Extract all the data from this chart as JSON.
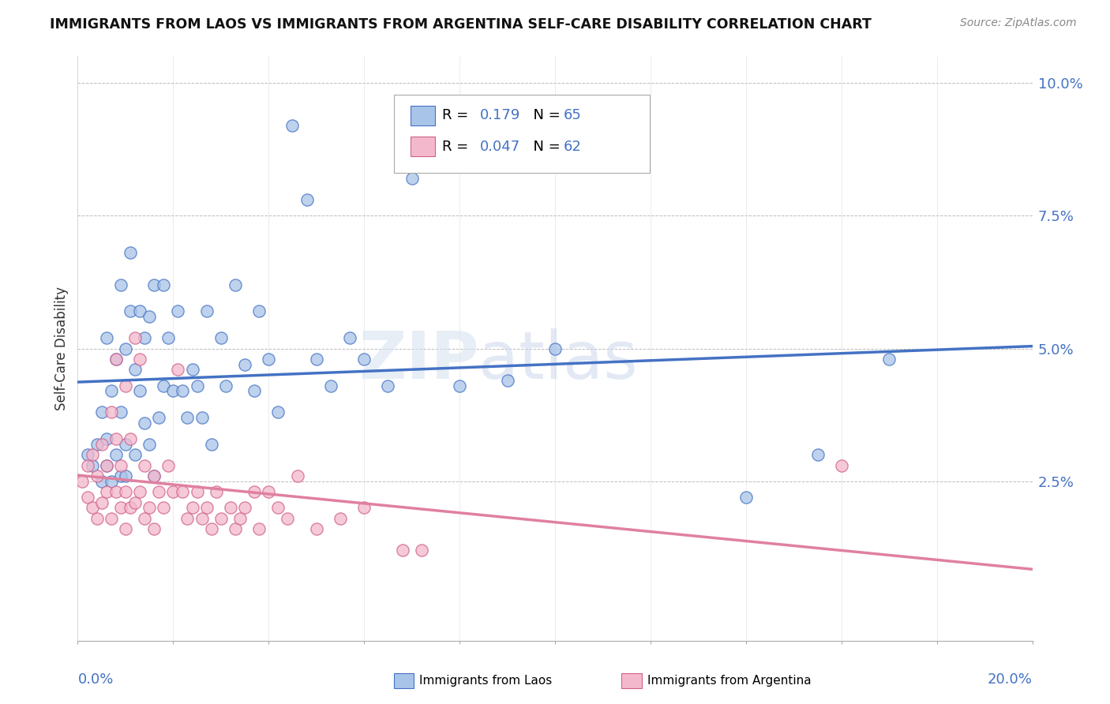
{
  "title": "IMMIGRANTS FROM LAOS VS IMMIGRANTS FROM ARGENTINA SELF-CARE DISABILITY CORRELATION CHART",
  "source": "Source: ZipAtlas.com",
  "ylabel": "Self-Care Disability",
  "xmin": 0.0,
  "xmax": 0.2,
  "ymin": -0.005,
  "ymax": 0.105,
  "yticks": [
    0.025,
    0.05,
    0.075,
    0.1
  ],
  "ytick_labels": [
    "2.5%",
    "5.0%",
    "7.5%",
    "10.0%"
  ],
  "xtick_labels": [
    "0.0%",
    "20.0%"
  ],
  "legend_laos_r": "0.179",
  "legend_laos_n": "65",
  "legend_argentina_r": "0.047",
  "legend_argentina_n": "62",
  "color_laos_fill": "#a8c4e8",
  "color_laos_edge": "#4472c4",
  "color_argentina_fill": "#f4b8cc",
  "color_argentina_edge": "#d0608a",
  "color_laos_line": "#4472c4",
  "color_argentina_line": "#e080a0",
  "laos_x": [
    0.002,
    0.003,
    0.004,
    0.005,
    0.005,
    0.006,
    0.006,
    0.006,
    0.007,
    0.007,
    0.008,
    0.008,
    0.009,
    0.009,
    0.009,
    0.01,
    0.01,
    0.01,
    0.011,
    0.011,
    0.012,
    0.012,
    0.013,
    0.013,
    0.014,
    0.014,
    0.015,
    0.015,
    0.016,
    0.016,
    0.017,
    0.018,
    0.018,
    0.019,
    0.02,
    0.021,
    0.022,
    0.023,
    0.024,
    0.025,
    0.026,
    0.027,
    0.028,
    0.03,
    0.031,
    0.033,
    0.035,
    0.037,
    0.038,
    0.04,
    0.042,
    0.045,
    0.048,
    0.05,
    0.053,
    0.057,
    0.06,
    0.065,
    0.07,
    0.08,
    0.09,
    0.1,
    0.14,
    0.155,
    0.17
  ],
  "laos_y": [
    0.03,
    0.028,
    0.032,
    0.038,
    0.025,
    0.052,
    0.033,
    0.028,
    0.042,
    0.025,
    0.048,
    0.03,
    0.038,
    0.062,
    0.026,
    0.05,
    0.032,
    0.026,
    0.057,
    0.068,
    0.046,
    0.03,
    0.042,
    0.057,
    0.036,
    0.052,
    0.056,
    0.032,
    0.062,
    0.026,
    0.037,
    0.043,
    0.062,
    0.052,
    0.042,
    0.057,
    0.042,
    0.037,
    0.046,
    0.043,
    0.037,
    0.057,
    0.032,
    0.052,
    0.043,
    0.062,
    0.047,
    0.042,
    0.057,
    0.048,
    0.038,
    0.092,
    0.078,
    0.048,
    0.043,
    0.052,
    0.048,
    0.043,
    0.082,
    0.043,
    0.044,
    0.05,
    0.022,
    0.03,
    0.048
  ],
  "argentina_x": [
    0.001,
    0.002,
    0.002,
    0.003,
    0.003,
    0.004,
    0.004,
    0.005,
    0.005,
    0.006,
    0.006,
    0.007,
    0.007,
    0.008,
    0.008,
    0.008,
    0.009,
    0.009,
    0.01,
    0.01,
    0.01,
    0.011,
    0.011,
    0.012,
    0.012,
    0.013,
    0.013,
    0.014,
    0.014,
    0.015,
    0.016,
    0.016,
    0.017,
    0.018,
    0.019,
    0.02,
    0.021,
    0.022,
    0.023,
    0.024,
    0.025,
    0.026,
    0.027,
    0.028,
    0.029,
    0.03,
    0.032,
    0.033,
    0.034,
    0.035,
    0.037,
    0.038,
    0.04,
    0.042,
    0.044,
    0.046,
    0.05,
    0.055,
    0.06,
    0.068,
    0.072,
    0.16
  ],
  "argentina_y": [
    0.025,
    0.022,
    0.028,
    0.03,
    0.02,
    0.026,
    0.018,
    0.032,
    0.021,
    0.028,
    0.023,
    0.038,
    0.018,
    0.048,
    0.023,
    0.033,
    0.028,
    0.02,
    0.043,
    0.023,
    0.016,
    0.033,
    0.02,
    0.052,
    0.021,
    0.048,
    0.023,
    0.028,
    0.018,
    0.02,
    0.026,
    0.016,
    0.023,
    0.02,
    0.028,
    0.023,
    0.046,
    0.023,
    0.018,
    0.02,
    0.023,
    0.018,
    0.02,
    0.016,
    0.023,
    0.018,
    0.02,
    0.016,
    0.018,
    0.02,
    0.023,
    0.016,
    0.023,
    0.02,
    0.018,
    0.026,
    0.016,
    0.018,
    0.02,
    0.012,
    0.012,
    0.028
  ]
}
